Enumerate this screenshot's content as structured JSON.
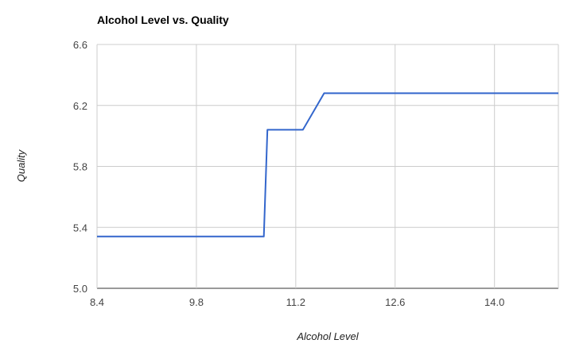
{
  "chart_data": {
    "type": "line",
    "title": "Alcohol Level vs. Quality",
    "xlabel": "Alcohol Level",
    "ylabel": "Quality",
    "xlim": [
      8.4,
      14.9
    ],
    "ylim": [
      5.0,
      6.6
    ],
    "x_ticks": [
      "8.4",
      "9.8",
      "11.2",
      "12.6",
      "14.0"
    ],
    "y_ticks": [
      "5.0",
      "5.4",
      "5.8",
      "6.2",
      "6.6"
    ],
    "grid": true,
    "legend": "none",
    "series": [
      {
        "color": "#3366cc",
        "x": [
          8.4,
          10.75,
          10.8,
          11.3,
          11.6,
          14.9
        ],
        "y": [
          5.34,
          5.34,
          6.04,
          6.04,
          6.28,
          6.28
        ]
      }
    ]
  }
}
